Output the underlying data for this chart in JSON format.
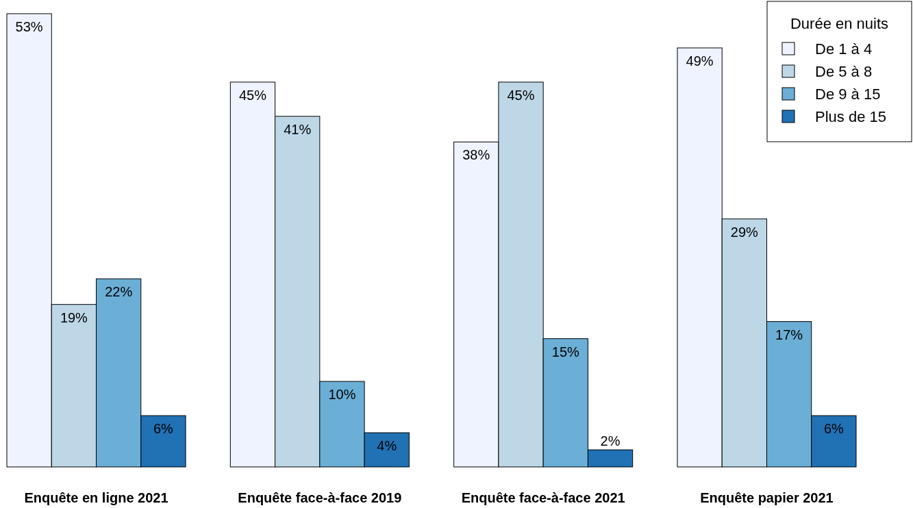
{
  "chart_data": {
    "type": "bar",
    "categories": [
      "Enquête en ligne 2021",
      "Enquête face-à-face 2019",
      "Enquête face-à-face 2021",
      "Enquête papier 2021"
    ],
    "legend_title": "Durée en nuits",
    "legend": "top right",
    "series": [
      {
        "name": "De 1 à 4",
        "color": "#eff3ff",
        "values": [
          53,
          45,
          38,
          49
        ],
        "value_labels": [
          "53%",
          "45%",
          "38%",
          "49%"
        ]
      },
      {
        "name": "De 5 à 8",
        "color": "#bdd7e7",
        "values": [
          19,
          41,
          45,
          29
        ],
        "value_labels": [
          "19%",
          "41%",
          "45%",
          "29%"
        ]
      },
      {
        "name": "De 9 à 15",
        "color": "#6baed6",
        "values": [
          22,
          10,
          15,
          17
        ],
        "value_labels": [
          "22%",
          "10%",
          "15%",
          "17%"
        ]
      },
      {
        "name": "Plus de 15",
        "color": "#2171b5",
        "values": [
          6,
          4,
          2,
          6
        ],
        "value_labels": [
          "6%",
          "4%",
          "2%",
          "6%"
        ]
      }
    ]
  }
}
